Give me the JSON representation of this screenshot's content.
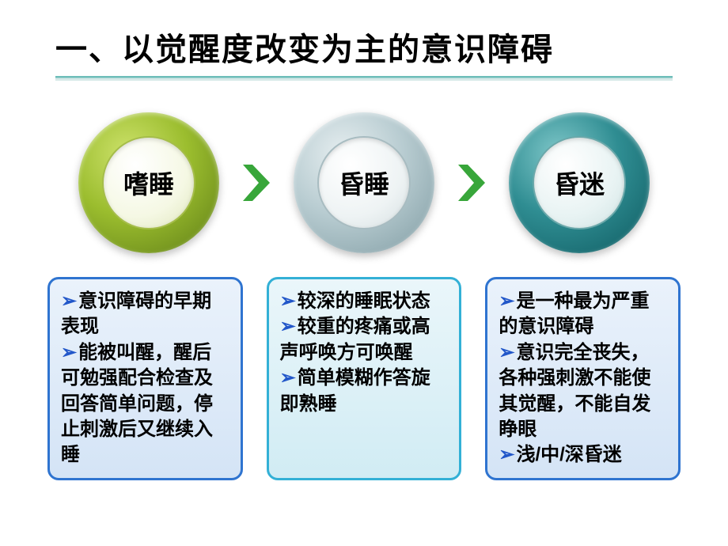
{
  "title": "一、以觉醒度改变为主的意识障碍",
  "underline": {
    "top_color": "#6dbdb9",
    "bottom_color": "#d6e9e8"
  },
  "circles": [
    {
      "label": "嗜睡",
      "ring_outer_bg": "radial-gradient(circle at 35% 30%, #cde26b 0%, #9bbd2e 45%, #5d7c16 100%)",
      "inner_bg": "radial-gradient(circle at 35% 30%, #ffffff 0%, #f5f8e4 60%, #dfe6bc 100%)",
      "inner_border": "#a5bd4a"
    },
    {
      "label": "昏睡",
      "ring_outer_bg": "radial-gradient(circle at 35% 30%, #e6eef0 0%, #b8ccd1 45%, #7f9ba2 100%)",
      "inner_bg": "radial-gradient(circle at 35% 30%, #ffffff 0%, #eef3f4 60%, #d5dfe1 100%)",
      "inner_border": "#a8bcc1"
    },
    {
      "label": "昏迷",
      "ring_outer_bg": "radial-gradient(circle at 35% 30%, #7fc7c9 0%, #2f8d92 45%, #0e5a60 100%)",
      "inner_bg": "radial-gradient(circle at 35% 30%, #ffffff 0%, #e8f3f3 60%, #cfe3e3 100%)",
      "inner_border": "#6aa8aa"
    }
  ],
  "chevron_color": "#38a63a",
  "boxes": [
    {
      "border": "#2f74d0",
      "bg": "linear-gradient(to bottom, #eaf2fb 0%, #d4e4f6 100%)",
      "bullets": [
        "意识障碍的早期表现",
        "能被叫醒，醒后可勉强配合检查及回答简单问题，停止刺激后又继续入睡"
      ]
    },
    {
      "border": "#33b0d6",
      "bg": "linear-gradient(to bottom, #eaf6fa 0%, #d1ecf4 100%)",
      "bullets": [
        "较深的睡眠状态",
        "较重的疼痛或高声呼唤方可唤醒",
        "简单模糊作答旋即熟睡"
      ]
    },
    {
      "border": "#2f74d0",
      "bg": "linear-gradient(to bottom, #eaf2fb 0%, #d4e4f6 100%)",
      "bullets": [
        "是一种最为严重的意识障碍",
        "意识完全丧失，各种强刺激不能使其觉醒，不能自发睁眼",
        "浅/中/深昏迷"
      ]
    }
  ],
  "bullet_marker": "➢",
  "bullet_marker_color": "#2257c9"
}
